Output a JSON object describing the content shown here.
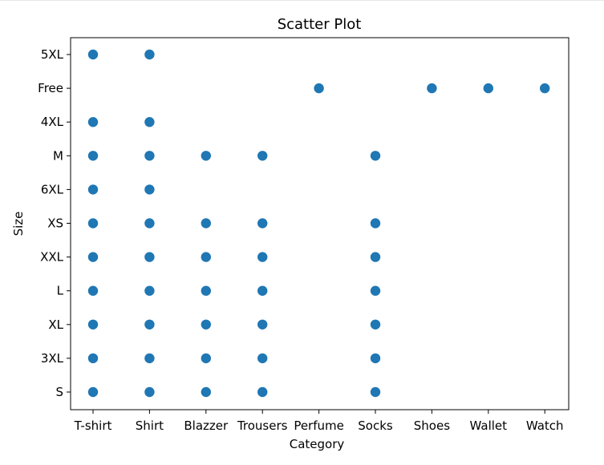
{
  "chart_data": {
    "type": "scatter",
    "title": "Scatter Plot",
    "xlabel": "Category",
    "ylabel": "Size",
    "x_categories": [
      "T-shirt",
      "Shirt",
      "Blazzer",
      "Trousers",
      "Perfume",
      "Socks",
      "Shoes",
      "Wallet",
      "Watch"
    ],
    "y_categories": [
      "S",
      "3XL",
      "XL",
      "L",
      "XXL",
      "XS",
      "6XL",
      "M",
      "4XL",
      "Free",
      "5XL"
    ],
    "points": [
      {
        "x": "T-shirt",
        "y": "5XL"
      },
      {
        "x": "T-shirt",
        "y": "4XL"
      },
      {
        "x": "T-shirt",
        "y": "M"
      },
      {
        "x": "T-shirt",
        "y": "6XL"
      },
      {
        "x": "T-shirt",
        "y": "XS"
      },
      {
        "x": "T-shirt",
        "y": "XXL"
      },
      {
        "x": "T-shirt",
        "y": "L"
      },
      {
        "x": "T-shirt",
        "y": "XL"
      },
      {
        "x": "T-shirt",
        "y": "3XL"
      },
      {
        "x": "T-shirt",
        "y": "S"
      },
      {
        "x": "Shirt",
        "y": "5XL"
      },
      {
        "x": "Shirt",
        "y": "4XL"
      },
      {
        "x": "Shirt",
        "y": "M"
      },
      {
        "x": "Shirt",
        "y": "6XL"
      },
      {
        "x": "Shirt",
        "y": "XS"
      },
      {
        "x": "Shirt",
        "y": "XXL"
      },
      {
        "x": "Shirt",
        "y": "L"
      },
      {
        "x": "Shirt",
        "y": "XL"
      },
      {
        "x": "Shirt",
        "y": "3XL"
      },
      {
        "x": "Shirt",
        "y": "S"
      },
      {
        "x": "Blazzer",
        "y": "M"
      },
      {
        "x": "Blazzer",
        "y": "XS"
      },
      {
        "x": "Blazzer",
        "y": "XXL"
      },
      {
        "x": "Blazzer",
        "y": "L"
      },
      {
        "x": "Blazzer",
        "y": "XL"
      },
      {
        "x": "Blazzer",
        "y": "3XL"
      },
      {
        "x": "Blazzer",
        "y": "S"
      },
      {
        "x": "Trousers",
        "y": "M"
      },
      {
        "x": "Trousers",
        "y": "XS"
      },
      {
        "x": "Trousers",
        "y": "XXL"
      },
      {
        "x": "Trousers",
        "y": "L"
      },
      {
        "x": "Trousers",
        "y": "XL"
      },
      {
        "x": "Trousers",
        "y": "3XL"
      },
      {
        "x": "Trousers",
        "y": "S"
      },
      {
        "x": "Perfume",
        "y": "Free"
      },
      {
        "x": "Socks",
        "y": "M"
      },
      {
        "x": "Socks",
        "y": "XS"
      },
      {
        "x": "Socks",
        "y": "XXL"
      },
      {
        "x": "Socks",
        "y": "L"
      },
      {
        "x": "Socks",
        "y": "XL"
      },
      {
        "x": "Socks",
        "y": "3XL"
      },
      {
        "x": "Socks",
        "y": "S"
      },
      {
        "x": "Shoes",
        "y": "Free"
      },
      {
        "x": "Wallet",
        "y": "Free"
      },
      {
        "x": "Watch",
        "y": "Free"
      }
    ],
    "marker_color": "#1f77b4",
    "grid": false,
    "legend": "none"
  }
}
